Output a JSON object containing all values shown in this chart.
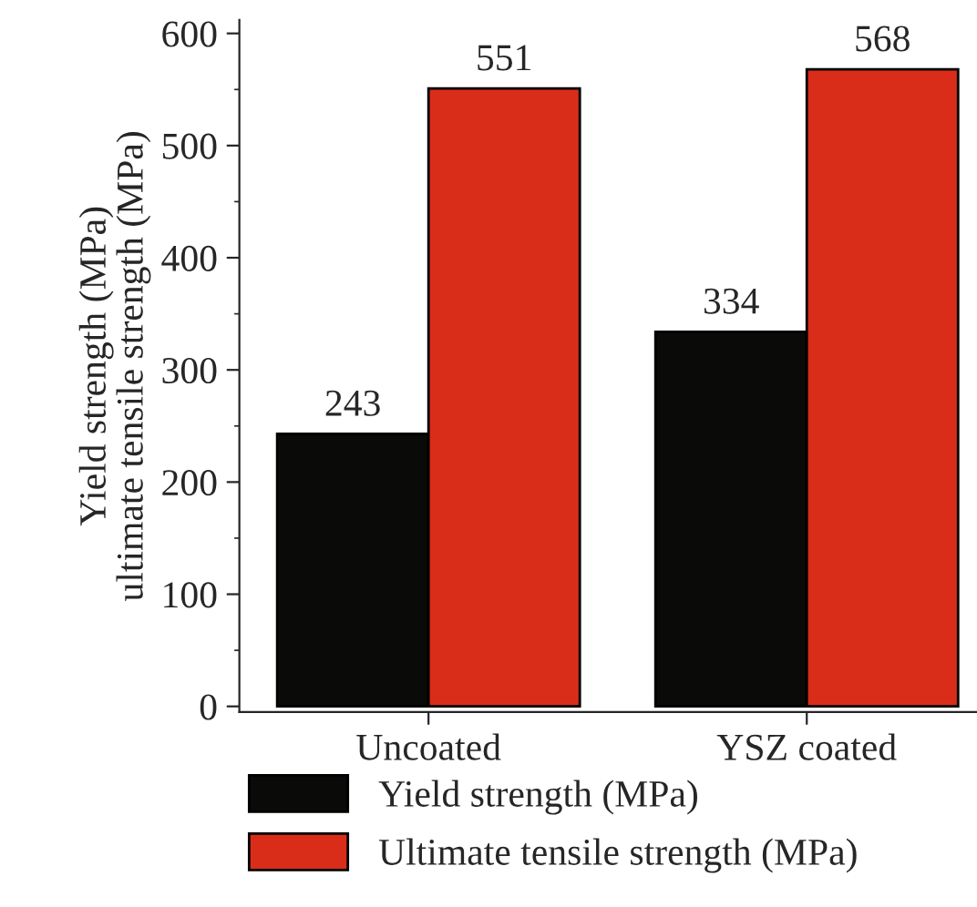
{
  "chart_data": {
    "type": "bar",
    "ylabel": "Yield strength (MPa)\nultimate tensile strength (MPa)",
    "categories": [
      "Uncoated",
      "YSZ coated"
    ],
    "series": [
      {
        "name": "Yield strength (MPa)",
        "color": "#0a0a08",
        "values": [
          243,
          334
        ]
      },
      {
        "name": "Ultimate tensile strength (MPa)",
        "color": "#d92d1a",
        "values": [
          551,
          568
        ]
      }
    ],
    "ylim": [
      -5,
      612
    ],
    "yticks": [
      0,
      100,
      200,
      300,
      400,
      500,
      600
    ],
    "data_labels": true,
    "legend": "bottom",
    "grid": false
  }
}
